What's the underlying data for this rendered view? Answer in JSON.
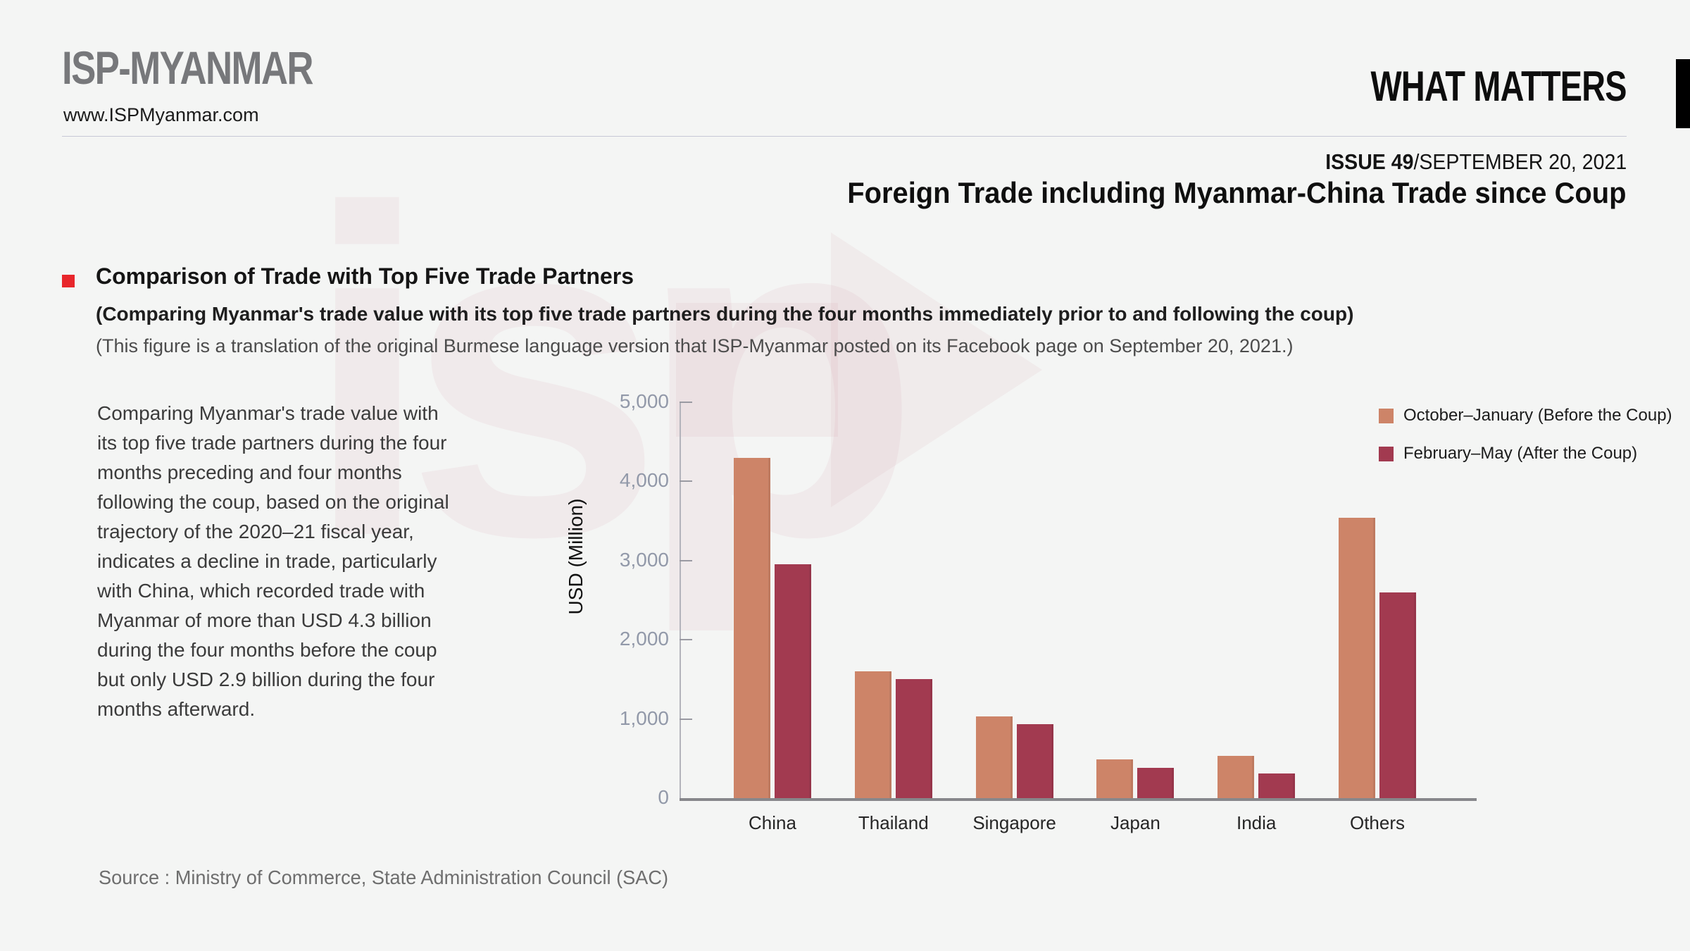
{
  "header": {
    "logo": "ISP-MYANMAR",
    "website": "www.ISPMyanmar.com",
    "brand": "WHAT MATTERS",
    "issue_label": "ISSUE 49",
    "issue_date": "/SEPTEMBER 20, 2021",
    "title": "Foreign Trade including Myanmar-China Trade since Coup"
  },
  "section": {
    "heading": "Comparison of Trade with Top Five Trade Partners",
    "subtitle": "(Comparing Myanmar's trade value with its top five trade partners during the four months immediately prior to and following the coup)",
    "note": "(This figure is a translation of the original Burmese language version that ISP-Myanmar posted on its Facebook page on September 20, 2021.)"
  },
  "body_text": "Comparing Myanmar's trade value with its top five trade partners during the four months preceding and four months following the coup, based on the original trajectory of the 2020–21 fiscal year, indicates a decline in trade, particularly with China, which recorded trade with Myanmar of more than USD 4.3 billion during the four months before the coup but only USD 2.9 billion during the four months afterward.",
  "chart_data": {
    "type": "bar",
    "categories": [
      "China",
      "Thailand",
      "Singapore",
      "Japan",
      "India",
      "Others"
    ],
    "series": [
      {
        "name": "October–January (Before the Coup)",
        "color": "#cd8468",
        "values": [
          4300,
          1600,
          1030,
          490,
          530,
          3540
        ]
      },
      {
        "name": "February–May (After the Coup)",
        "color": "#a23a50",
        "values": [
          2950,
          1500,
          930,
          380,
          310,
          2600
        ]
      }
    ],
    "title": "",
    "xlabel": "",
    "ylabel": "USD (Million)",
    "ylim": [
      0,
      5000
    ],
    "yticks": [
      0,
      1000,
      2000,
      3000,
      4000,
      5000
    ],
    "ytick_labels": [
      "0",
      "1,000",
      "2,000",
      "3,000",
      "4,000",
      "5,000"
    ],
    "legend_position": "top-right",
    "grid": false
  },
  "source": "Source :  Ministry of Commerce, State Administration Council (SAC)",
  "colors": {
    "background": "#f4f5f4",
    "accent_red": "#e8262b",
    "before_bar": "#cd8468",
    "after_bar": "#a23a50",
    "tick_label": "#9299a9"
  }
}
